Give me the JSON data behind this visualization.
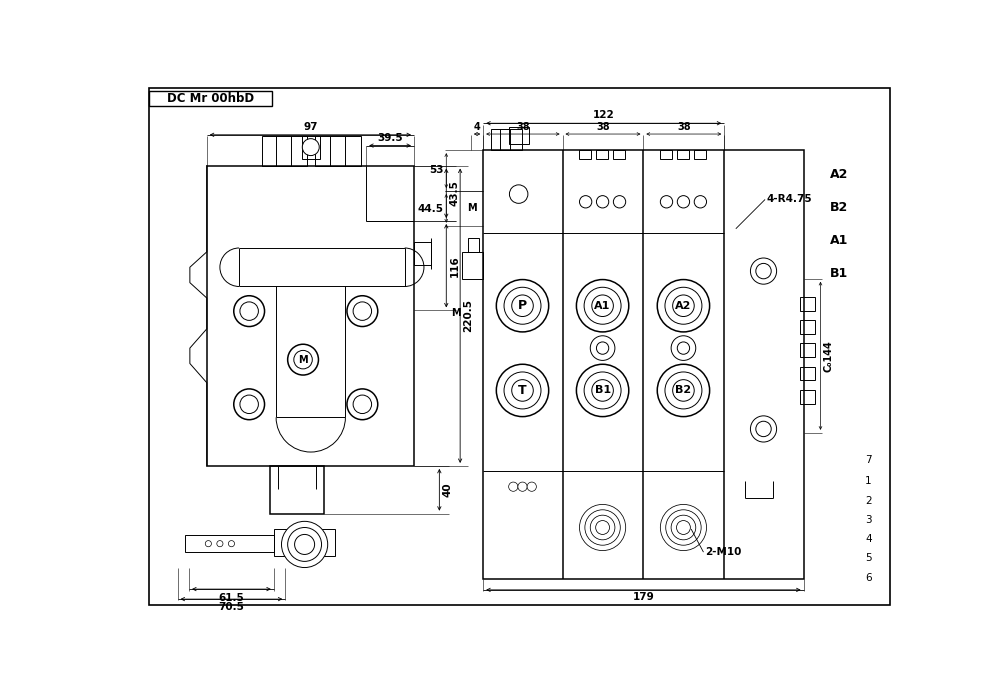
{
  "bg_color": "#ffffff",
  "line_color": "#000000",
  "title_text": "DC Mr 00hbD",
  "right_labels": [
    "A2",
    "B2",
    "A1",
    "B1"
  ],
  "right_numbers": [
    "7",
    "1",
    "2",
    "3",
    "4",
    "5",
    "6"
  ],
  "dim_4r475": "4-R4.75",
  "dim_2m10": "2-M10",
  "dim_c144": "C₀144"
}
